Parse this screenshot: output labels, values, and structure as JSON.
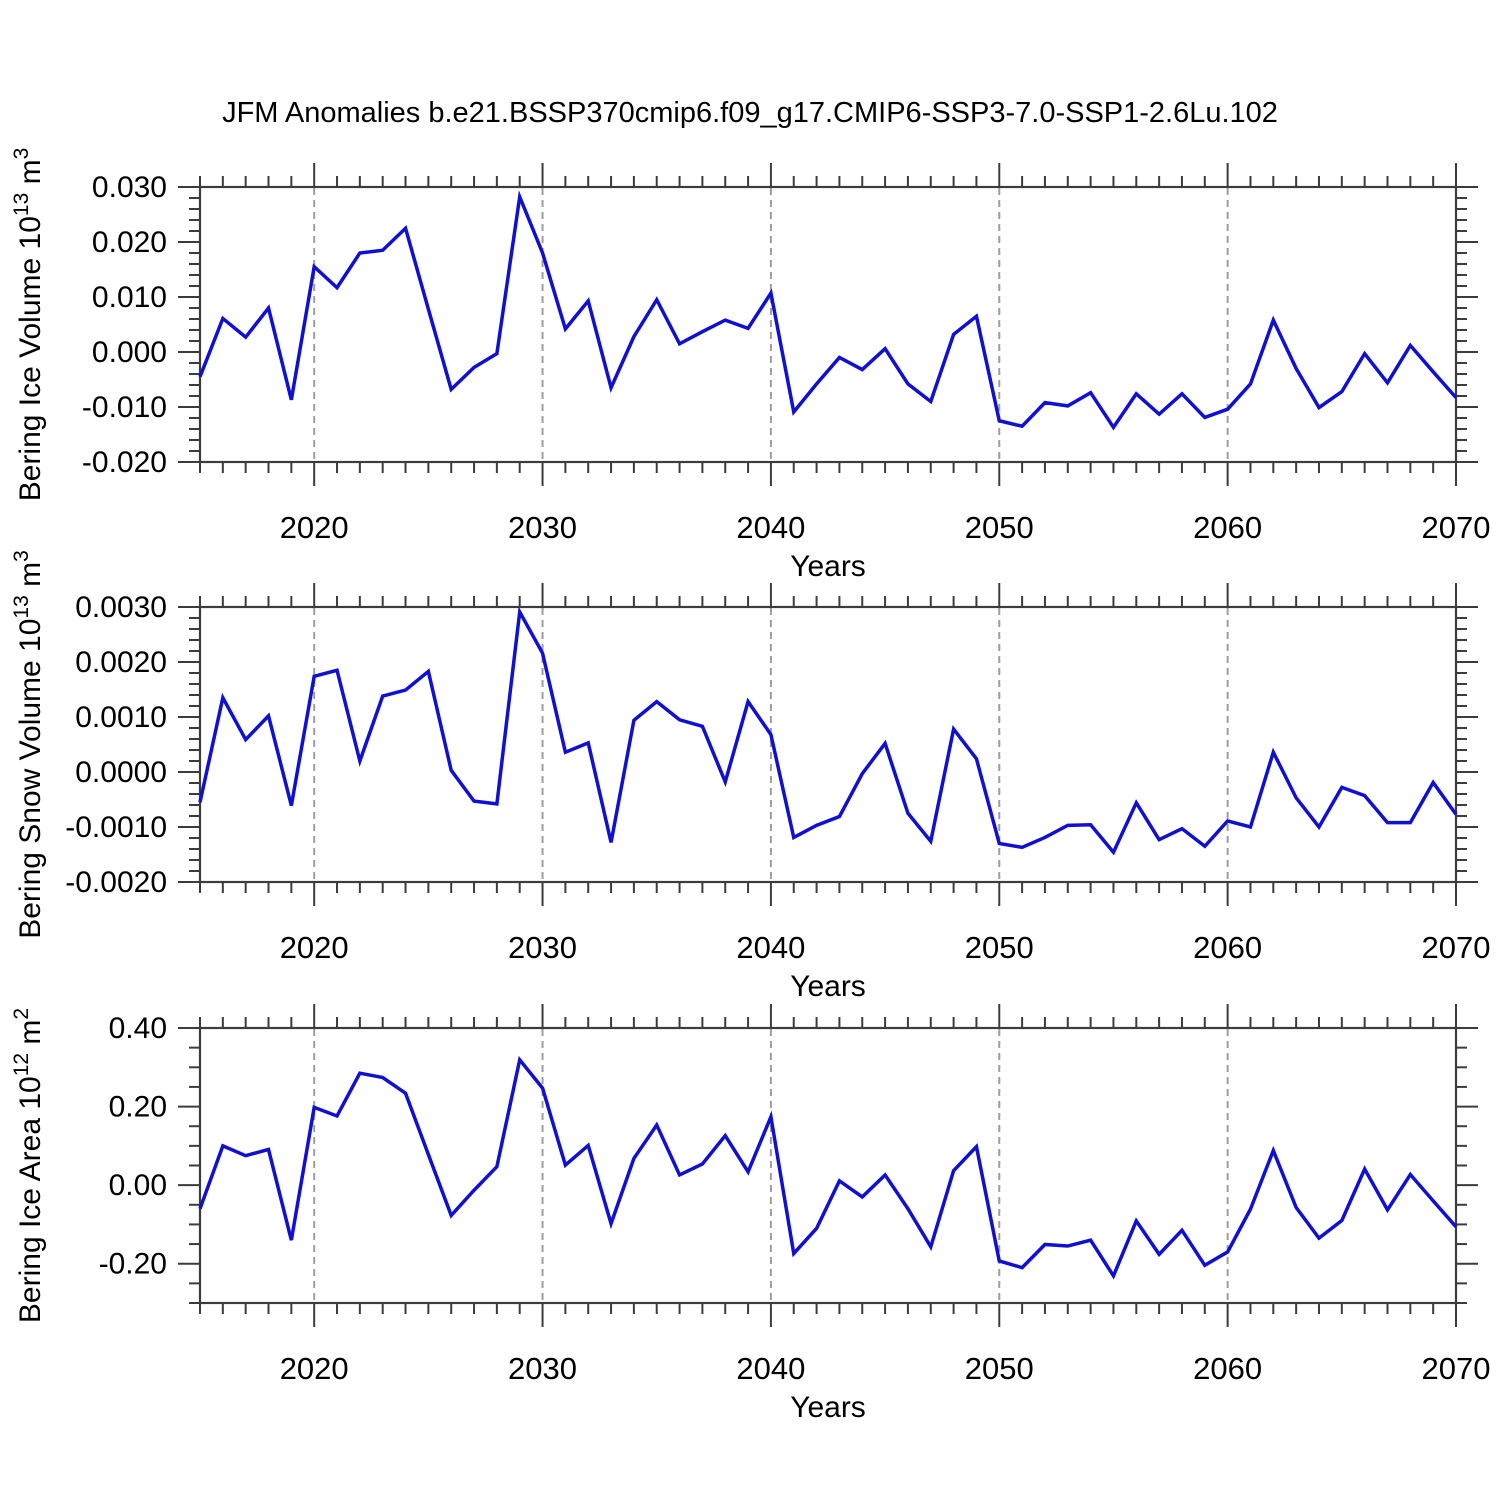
{
  "title": "JFM Anomalies b.e21.BSSP370cmip6.f09_g17.CMIP6-SSP3-7.0-SSP1-2.6Lu.102",
  "style": {
    "line_color": "#1010d4",
    "grid_color": "#9e9e9e",
    "axis_color": "#3c3c3c",
    "background": "#ffffff"
  },
  "x_axis": {
    "label": "Years",
    "year_start": 2015,
    "year_end": 2070,
    "tick_labels": [
      "2020",
      "2030",
      "2040",
      "2050",
      "2060",
      "2070"
    ],
    "tick_years": [
      2020,
      2030,
      2040,
      2050,
      2060,
      2070
    ],
    "gridline_years": [
      2020,
      2030,
      2040,
      2050,
      2060
    ]
  },
  "chart_data": [
    {
      "type": "line",
      "name": "bering-ice-volume",
      "ylabel_text": "Bering Ice Volume 10^13 m^3",
      "ylabel_parts": [
        {
          "t": "Bering Ice Volume 10"
        },
        {
          "t": "13",
          "sup": true
        },
        {
          "t": " m"
        },
        {
          "t": "3",
          "sup": true
        }
      ],
      "xlabel": "Years",
      "ylim": [
        -0.02,
        0.03
      ],
      "ytick_values": [
        0.03,
        0.02,
        0.01,
        0.0,
        -0.01,
        -0.02
      ],
      "ytick_labels": [
        "0.030",
        "0.020",
        "0.010",
        "0.000",
        "-0.010",
        "-0.020"
      ],
      "minor_step": 0.002,
      "x_start": 2015,
      "values": [
        -0.0045,
        0.0061,
        0.0027,
        0.008,
        -0.0087,
        0.0155,
        0.0117,
        0.018,
        0.0185,
        0.0225,
        0.0078,
        -0.0068,
        -0.0028,
        -0.0003,
        0.0282,
        0.018,
        0.0042,
        0.0093,
        -0.0065,
        0.0028,
        0.0095,
        0.0015,
        0.0037,
        0.0058,
        0.0043,
        0.0107,
        -0.0109,
        -0.0058,
        -0.001,
        -0.0032,
        0.0006,
        -0.0058,
        -0.009,
        0.0032,
        0.0065,
        -0.0125,
        -0.0135,
        -0.0092,
        -0.0098,
        -0.0074,
        -0.0137,
        -0.0076,
        -0.0113,
        -0.0076,
        -0.0119,
        -0.0104,
        -0.0058,
        0.0058,
        -0.003,
        -0.0101,
        -0.0072,
        -0.0003,
        -0.0056,
        0.0012,
        -0.0036,
        -0.0083
      ]
    },
    {
      "type": "line",
      "name": "bering-snow-volume",
      "ylabel_text": "Bering Snow Volume 10^13 m^3",
      "ylabel_parts": [
        {
          "t": "Bering Snow Volume 10"
        },
        {
          "t": "13",
          "sup": true
        },
        {
          "t": " m"
        },
        {
          "t": "3",
          "sup": true
        }
      ],
      "xlabel": "Years",
      "ylim": [
        -0.002,
        0.003
      ],
      "ytick_values": [
        0.003,
        0.002,
        0.001,
        0.0,
        -0.001,
        -0.002
      ],
      "ytick_labels": [
        "0.0030",
        "0.0020",
        "0.0010",
        "0.0000",
        "-0.0010",
        "-0.0020"
      ],
      "minor_step": 0.0002,
      "x_start": 2015,
      "values": [
        -0.00055,
        0.00135,
        0.00059,
        0.00102,
        -0.00061,
        0.00174,
        0.00185,
        0.0002,
        0.00138,
        0.00149,
        0.00183,
        3e-05,
        -0.00053,
        -0.00058,
        0.00291,
        0.00216,
        0.00036,
        0.00053,
        -0.00128,
        0.00094,
        0.00128,
        0.00095,
        0.00083,
        -0.00018,
        0.00128,
        0.00068,
        -0.00119,
        -0.00097,
        -0.00081,
        -3e-05,
        0.00052,
        -0.00075,
        -0.00126,
        0.00078,
        0.00024,
        -0.0013,
        -0.00137,
        -0.00119,
        -0.00097,
        -0.00096,
        -0.00146,
        -0.00056,
        -0.00123,
        -0.00103,
        -0.00135,
        -0.00089,
        -0.001,
        0.00036,
        -0.00047,
        -0.001,
        -0.00028,
        -0.00043,
        -0.00092,
        -0.00092,
        -0.00019,
        -0.00077
      ]
    },
    {
      "type": "line",
      "name": "bering-ice-area",
      "ylabel_text": "Bering Ice Area 10^12 m^2",
      "ylabel_parts": [
        {
          "t": "Bering Ice Area 10"
        },
        {
          "t": "12",
          "sup": true
        },
        {
          "t": " m"
        },
        {
          "t": "2",
          "sup": true
        }
      ],
      "xlabel": "Years",
      "ylim": [
        -0.3,
        0.4
      ],
      "ytick_values": [
        0.4,
        0.2,
        0.0,
        -0.2
      ],
      "ytick_labels": [
        "0.40",
        "0.20",
        "0.00",
        "-0.20"
      ],
      "minor_step": 0.05,
      "x_start": 2015,
      "values": [
        -0.06,
        0.1,
        0.075,
        0.091,
        -0.14,
        0.198,
        0.176,
        0.285,
        0.274,
        0.234,
        0.078,
        -0.077,
        -0.013,
        0.047,
        0.319,
        0.247,
        0.051,
        0.101,
        -0.098,
        0.068,
        0.153,
        0.026,
        0.054,
        0.126,
        0.034,
        0.174,
        -0.174,
        -0.11,
        0.011,
        -0.03,
        0.026,
        -0.06,
        -0.157,
        0.037,
        0.098,
        -0.193,
        -0.21,
        -0.151,
        -0.155,
        -0.14,
        -0.231,
        -0.091,
        -0.176,
        -0.115,
        -0.204,
        -0.17,
        -0.061,
        0.088,
        -0.057,
        -0.135,
        -0.09,
        0.041,
        -0.063,
        0.027,
        -0.04,
        -0.106
      ]
    }
  ]
}
